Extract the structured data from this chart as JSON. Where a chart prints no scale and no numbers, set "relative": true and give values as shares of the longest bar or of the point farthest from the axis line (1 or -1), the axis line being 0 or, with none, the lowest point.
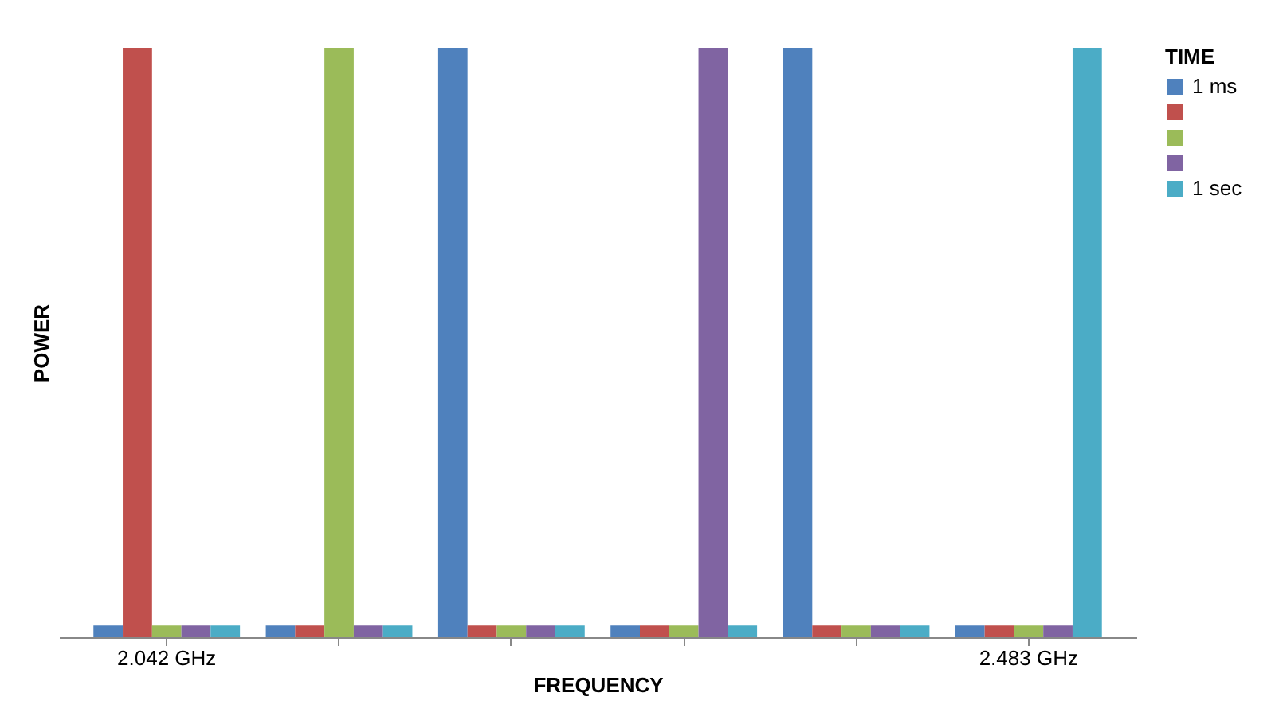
{
  "chart_data": {
    "type": "bar",
    "relative": true,
    "xlabel": "FREQUENCY",
    "ylabel": "POWER",
    "legend_title": "TIME",
    "legend": "right",
    "categories": [
      "2.042 GHz",
      null,
      null,
      null,
      null,
      "2.483 GHz"
    ],
    "series": [
      {
        "name": "1 ms",
        "color": "#4f81bd",
        "values": [
          0.02,
          0.02,
          1,
          0.02,
          1,
          0.02
        ]
      },
      {
        "color": "#c0504d",
        "values": [
          1,
          0.02,
          0.02,
          0.02,
          0.02,
          0.02
        ]
      },
      {
        "color": "#9bbb59",
        "values": [
          0.02,
          1,
          0.02,
          0.02,
          0.02,
          0.02
        ]
      },
      {
        "color": "#8064a2",
        "values": [
          0.02,
          0.02,
          0.02,
          1,
          0.02,
          0.02
        ]
      },
      {
        "name": "1 sec",
        "color": "#4bacc6",
        "values": [
          0.02,
          0.02,
          0.02,
          0.02,
          0.02,
          1
        ]
      }
    ]
  }
}
